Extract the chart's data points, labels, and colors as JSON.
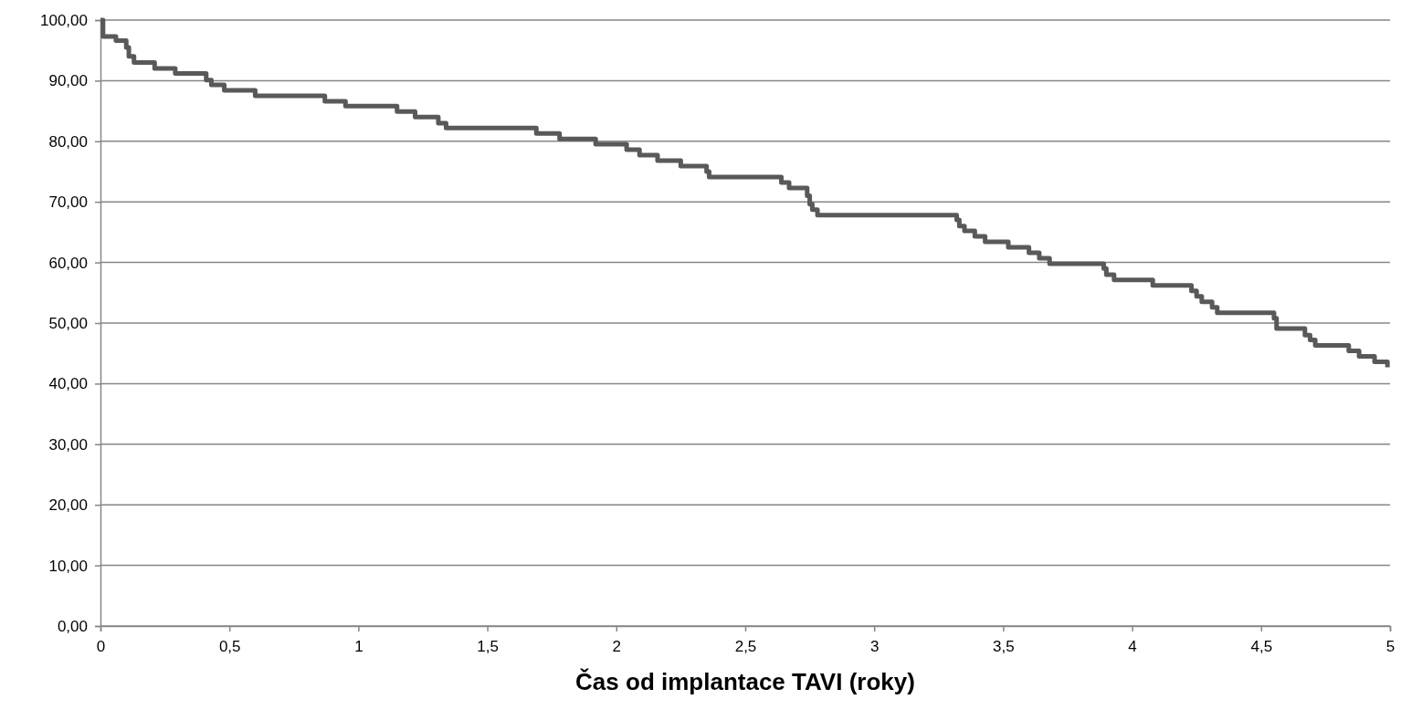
{
  "chart_data": {
    "type": "step",
    "xlabel": "Čas od implantace TAVI (roky)",
    "x": [
      0,
      0.01,
      0.06,
      0.1,
      0.11,
      0.13,
      0.21,
      0.29,
      0.41,
      0.43,
      0.48,
      0.6,
      0.87,
      0.95,
      1.15,
      1.22,
      1.31,
      1.34,
      1.69,
      1.78,
      1.92,
      2.04,
      2.09,
      2.16,
      2.25,
      2.35,
      2.36,
      2.64,
      2.67,
      2.74,
      2.75,
      2.76,
      2.78,
      3.32,
      3.33,
      3.35,
      3.39,
      3.43,
      3.52,
      3.6,
      3.64,
      3.68,
      3.89,
      3.9,
      3.93,
      4.08,
      4.23,
      4.25,
      4.27,
      4.31,
      4.33,
      4.55,
      4.56,
      4.67,
      4.69,
      4.71,
      4.84,
      4.88,
      4.94,
      4.99
    ],
    "series": [
      {
        "color": "#595959",
        "values": [
          100,
          97.3,
          96.6,
          95.5,
          94,
          93,
          92,
          91.2,
          90.1,
          89.3,
          88.4,
          87.5,
          86.6,
          85.8,
          84.9,
          84,
          83,
          82.2,
          81.3,
          80.4,
          79.5,
          78.6,
          77.7,
          76.8,
          75.9,
          75,
          74.1,
          73.2,
          72.3,
          71,
          69.6,
          68.7,
          67.8,
          67,
          66,
          65.2,
          64.3,
          63.4,
          62.5,
          61.6,
          60.7,
          59.8,
          59,
          58,
          57.1,
          56.2,
          55.3,
          54.4,
          53.5,
          52.6,
          51.7,
          50.8,
          49.1,
          48,
          47.2,
          46.3,
          45.4,
          44.5,
          43.6,
          42.7
        ]
      }
    ],
    "xlim": [
      0,
      5
    ],
    "xticks": [
      0,
      {
        "value": 0.5,
        "label": "0,5"
      },
      1,
      {
        "value": 1.5,
        "label": "1,5"
      },
      2,
      {
        "value": 2.5,
        "label": "2,5"
      },
      3,
      {
        "value": 3.5,
        "label": "3,5"
      },
      4,
      {
        "value": 4.5,
        "label": "4,5"
      },
      5
    ],
    "ylim": [
      0,
      100
    ],
    "yticks": [
      {
        "value": 0,
        "label": "0,00"
      },
      {
        "value": 10,
        "label": "10,00"
      },
      {
        "value": 20,
        "label": "20,00"
      },
      {
        "value": 30,
        "label": "30,00"
      },
      {
        "value": 40,
        "label": "40,00"
      },
      {
        "value": 50,
        "label": "50,00"
      },
      {
        "value": 60,
        "label": "60,00"
      },
      {
        "value": 70,
        "label": "70,00"
      },
      {
        "value": 80,
        "label": "80,00"
      },
      {
        "value": 90,
        "label": "90,00"
      },
      {
        "value": 100,
        "label": "100,00"
      }
    ],
    "grid": "y",
    "marker": "none",
    "line_style": "solid"
  }
}
